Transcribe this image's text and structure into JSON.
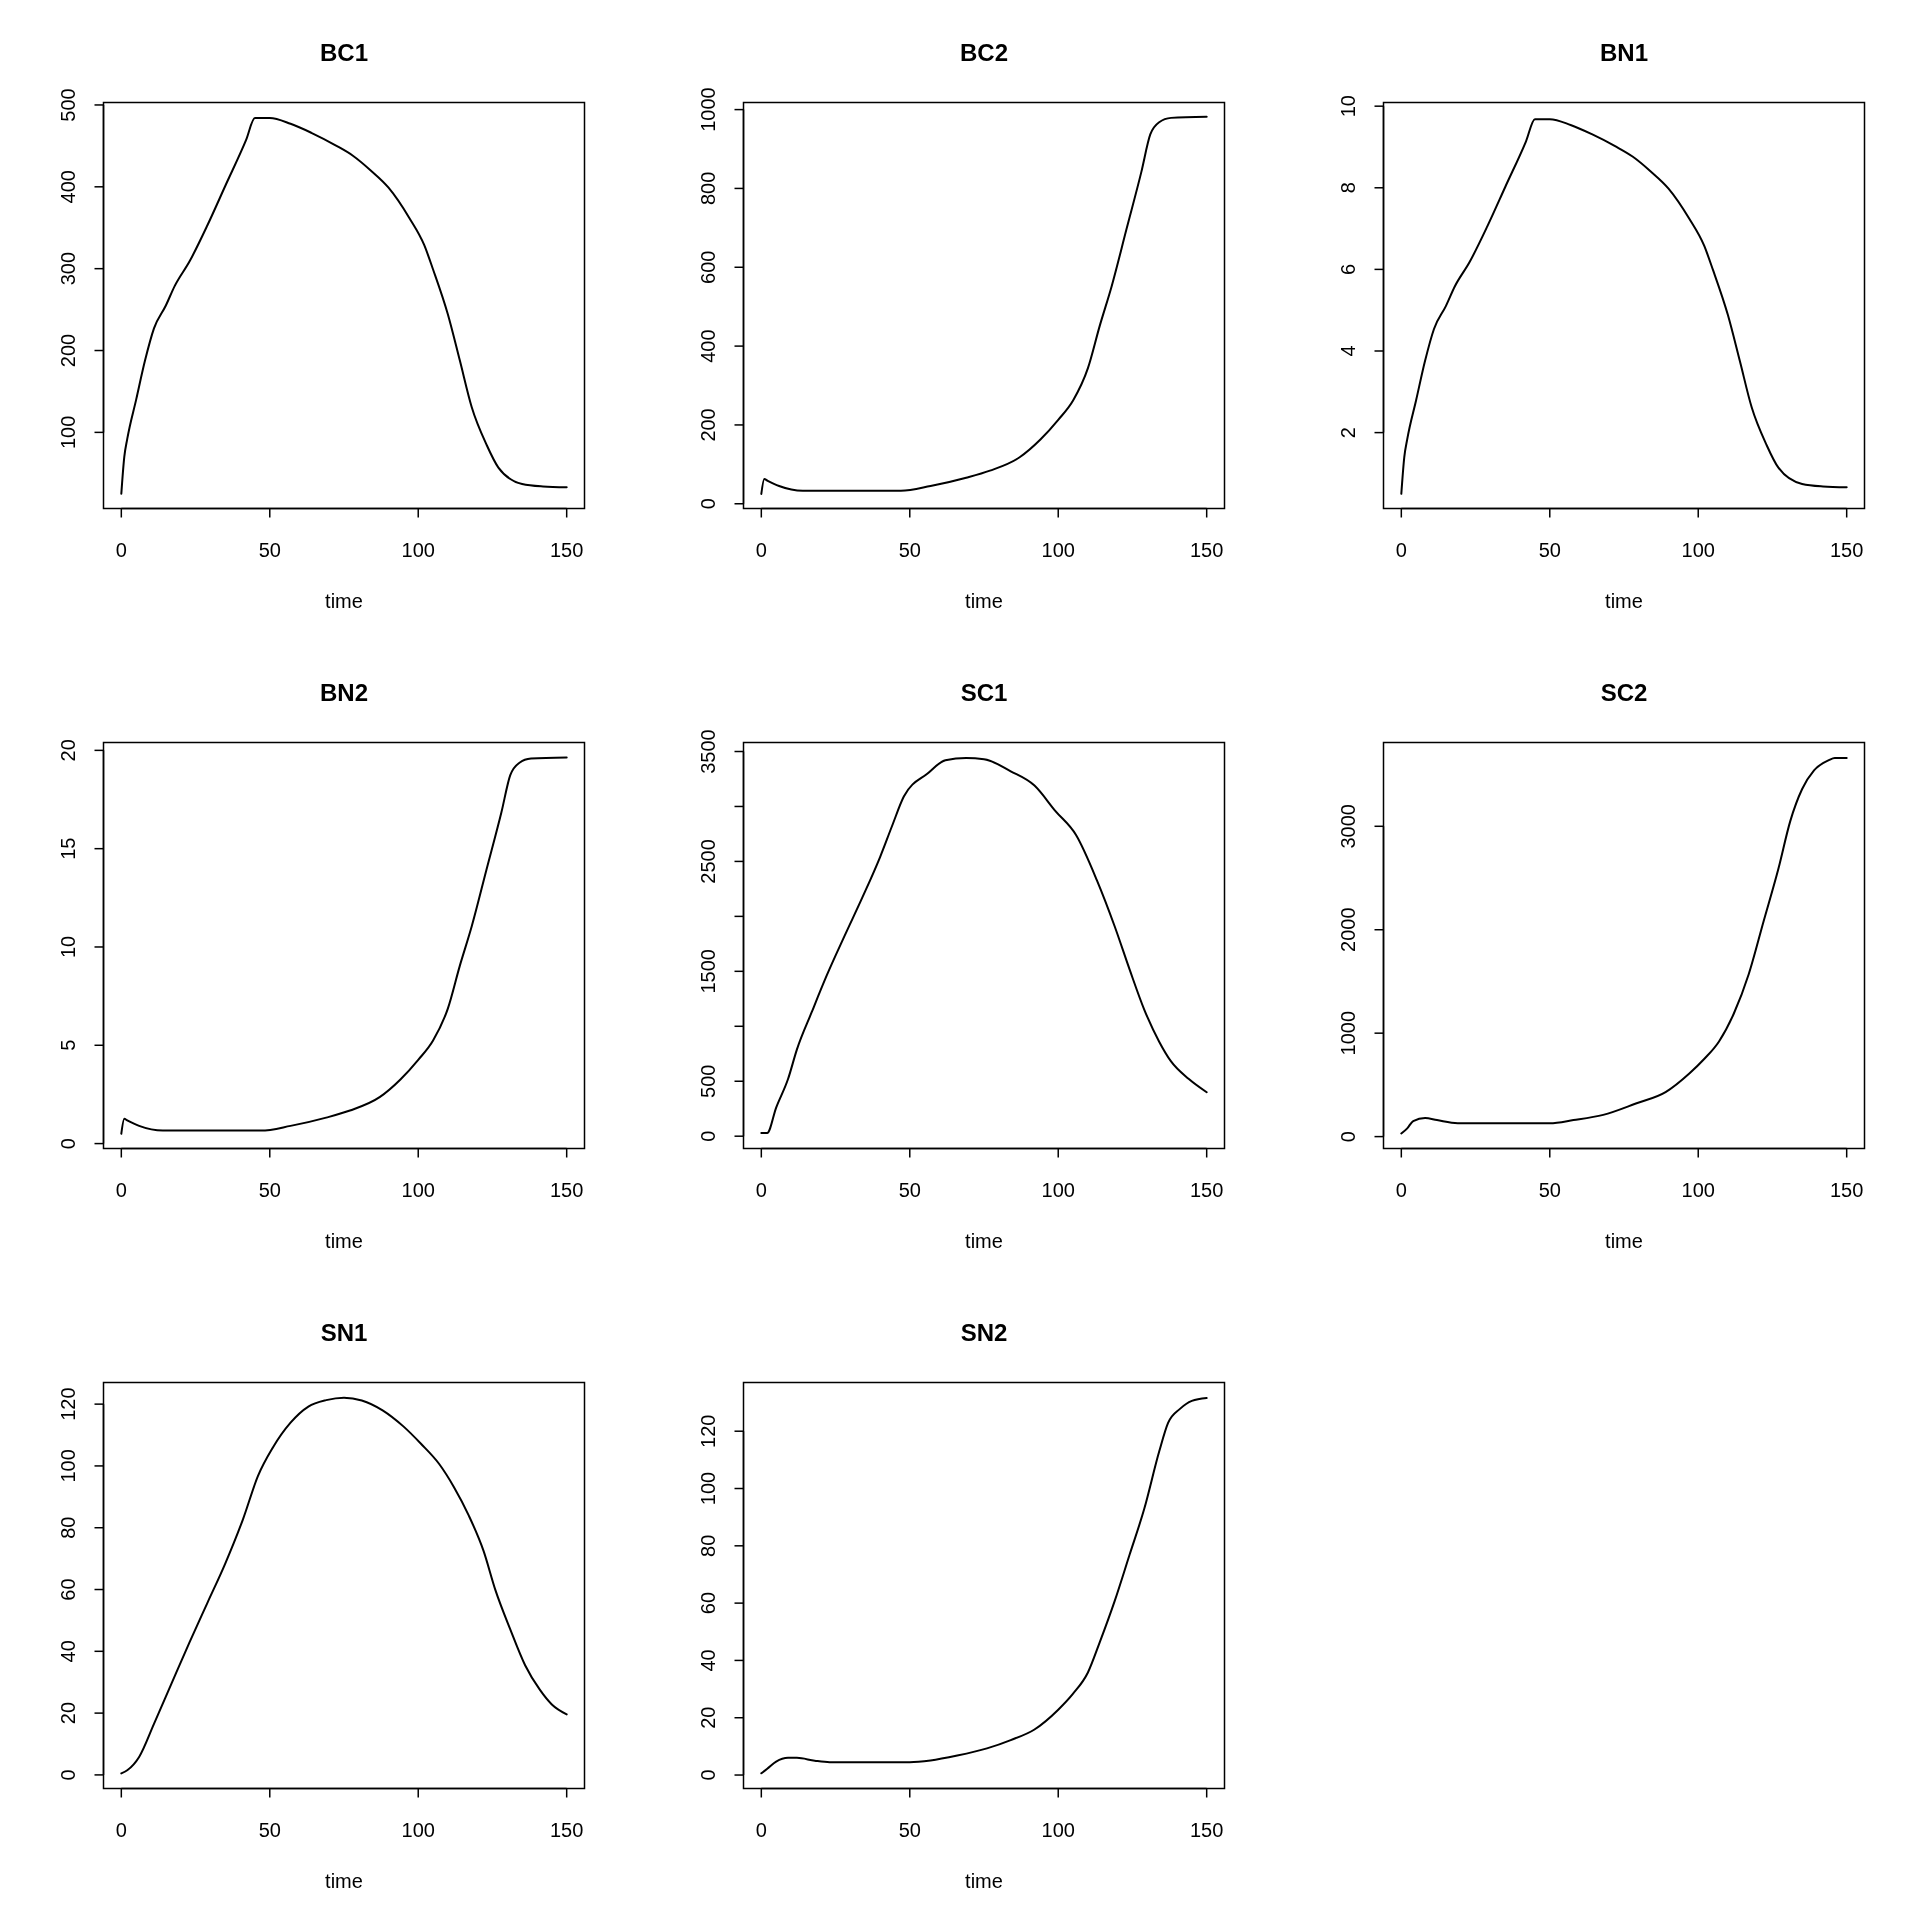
{
  "chart_data": [
    {
      "type": "line",
      "title": "BC1",
      "xlabel": "time",
      "color": "#000000",
      "xlim": [
        -6,
        156
      ],
      "xticks": [
        0,
        50,
        100,
        150
      ],
      "ylim": [
        7,
        503
      ],
      "yticks": [
        100,
        200,
        300,
        400,
        500
      ],
      "x": [
        0,
        1,
        2,
        5,
        8,
        11,
        15,
        18,
        23,
        29,
        35,
        42,
        45,
        50,
        57,
        64,
        72,
        78,
        84,
        90,
        97,
        102,
        105,
        110,
        114,
        118,
        123,
        127,
        135,
        142,
        150
      ],
      "values": [
        25,
        70,
        92,
        140,
        188,
        227,
        255,
        279,
        309,
        353,
        401,
        457,
        484,
        484,
        477,
        466,
        451,
        438,
        420,
        399,
        362,
        329,
        299,
        244,
        188,
        131,
        85,
        57,
        37,
        34,
        33
      ]
    },
    {
      "type": "line",
      "title": "BC2",
      "xlabel": "time",
      "color": "#000000",
      "xlim": [
        -6,
        156
      ],
      "xticks": [
        0,
        50,
        100,
        150
      ],
      "ylim": [
        -12,
        1018
      ],
      "yticks": [
        0,
        200,
        400,
        600,
        800,
        1000
      ],
      "x": [
        0,
        1,
        2,
        6,
        14,
        27,
        47,
        57,
        69,
        77,
        87,
        94,
        100,
        105,
        110,
        114,
        118,
        123,
        128,
        131,
        134,
        138,
        150
      ],
      "values": [
        25,
        63,
        59,
        45,
        33,
        33,
        33,
        45,
        66,
        84,
        118,
        163,
        213,
        262,
        344,
        452,
        552,
        697,
        842,
        937,
        968,
        979,
        982
      ]
    },
    {
      "type": "line",
      "title": "BN1",
      "xlabel": "time",
      "color": "#000000",
      "xlim": [
        -6,
        156
      ],
      "xticks": [
        0,
        50,
        100,
        150
      ],
      "ylim": [
        0.14,
        10.09
      ],
      "yticks": [
        2,
        4,
        6,
        8,
        10
      ],
      "x": [
        0,
        1,
        2,
        5,
        8,
        11,
        15,
        18,
        23,
        29,
        35,
        42,
        45,
        50,
        57,
        64,
        72,
        78,
        84,
        90,
        97,
        102,
        105,
        110,
        114,
        118,
        123,
        127,
        135,
        142,
        150
      ],
      "values": [
        0.5,
        1.4,
        1.84,
        2.8,
        3.76,
        4.54,
        5.1,
        5.58,
        6.18,
        7.06,
        8.02,
        9.14,
        9.68,
        9.68,
        9.54,
        9.32,
        9.02,
        8.76,
        8.4,
        7.98,
        7.24,
        6.58,
        5.98,
        4.88,
        3.76,
        2.62,
        1.7,
        1.14,
        0.74,
        0.68,
        0.66
      ]
    },
    {
      "type": "line",
      "title": "BN2",
      "xlabel": "time",
      "color": "#000000",
      "xlim": [
        -6,
        156
      ],
      "xticks": [
        0,
        50,
        100,
        150
      ],
      "ylim": [
        -0.25,
        20.4
      ],
      "yticks": [
        0,
        5,
        10,
        15,
        20
      ],
      "x": [
        0,
        1,
        2,
        6,
        14,
        27,
        47,
        57,
        69,
        77,
        87,
        94,
        100,
        105,
        110,
        114,
        118,
        123,
        128,
        131,
        134,
        138,
        150
      ],
      "values": [
        0.5,
        1.26,
        1.18,
        0.9,
        0.66,
        0.66,
        0.66,
        0.9,
        1.32,
        1.68,
        2.36,
        3.26,
        4.26,
        5.24,
        6.88,
        9.04,
        11.04,
        13.94,
        16.84,
        18.74,
        19.36,
        19.58,
        19.64
      ]
    },
    {
      "type": "line",
      "title": "SC1",
      "xlabel": "time",
      "color": "#000000",
      "xlim": [
        -6,
        156
      ],
      "xticks": [
        0,
        50,
        100,
        150
      ],
      "ylim": [
        -112,
        3582
      ],
      "yticks": [
        0,
        500,
        {
          "value": 1000,
          "label": null
        },
        1500,
        {
          "value": 2000,
          "label": null
        },
        2500,
        {
          "value": 3000,
          "label": null
        },
        3500
      ],
      "x": [
        0,
        2,
        5,
        9,
        12,
        17,
        22,
        28,
        34,
        40,
        44,
        48,
        56,
        62,
        69,
        75,
        84,
        92,
        99,
        106,
        113,
        119,
        124,
        129,
        134,
        138,
        144,
        150
      ],
      "values": [
        30,
        30,
        260,
        520,
        790,
        1130,
        1460,
        1820,
        2170,
        2540,
        2820,
        3090,
        3300,
        3420,
        3440,
        3430,
        3320,
        3190,
        2960,
        2740,
        2330,
        1910,
        1520,
        1150,
        860,
        680,
        520,
        400
      ]
    },
    {
      "type": "line",
      "title": "SC2",
      "xlabel": "time",
      "color": "#000000",
      "xlim": [
        -6,
        156
      ],
      "xticks": [
        0,
        50,
        100,
        150
      ],
      "ylim": [
        -115,
        3810
      ],
      "yticks": [
        0,
        1000,
        2000,
        3000
      ],
      "x": [
        0,
        2,
        4,
        8,
        12,
        19,
        34,
        50,
        58,
        68,
        79,
        89,
        97,
        102,
        107,
        112,
        117,
        122,
        127,
        131,
        135,
        139,
        144,
        146,
        150
      ],
      "values": [
        30,
        80,
        150,
        180,
        160,
        130,
        130,
        130,
        160,
        210,
        320,
        430,
        610,
        750,
        920,
        1190,
        1570,
        2080,
        2590,
        3050,
        3360,
        3540,
        3640,
        3660,
        3660
      ]
    },
    {
      "type": "line",
      "title": "SN1",
      "xlabel": "time",
      "color": "#000000",
      "xlim": [
        -6,
        156
      ],
      "xticks": [
        0,
        50,
        100,
        150
      ],
      "ylim": [
        -4.4,
        127
      ],
      "yticks": [
        0,
        20,
        40,
        60,
        80,
        100,
        120
      ],
      "x": [
        0,
        2,
        6,
        11,
        17,
        23,
        29,
        35,
        41,
        46,
        51,
        57,
        63,
        69,
        75,
        81,
        88,
        95,
        101,
        107,
        112,
        117,
        122,
        126,
        131,
        136,
        141,
        145,
        150
      ],
      "values": [
        0.5,
        1.5,
        5.8,
        16.5,
        29.8,
        43,
        55.7,
        68.4,
        82.8,
        96.7,
        105.9,
        114,
        119.2,
        121.3,
        122.1,
        121.2,
        118,
        112.8,
        107.1,
        100.7,
        93.2,
        84,
        72.5,
        59.8,
        47.1,
        35.5,
        27.5,
        22.8,
        19.6
      ]
    },
    {
      "type": "line",
      "title": "SN2",
      "xlabel": "time",
      "color": "#000000",
      "xlim": [
        -6,
        156
      ],
      "xticks": [
        0,
        50,
        100,
        150
      ],
      "ylim": [
        -4.7,
        137
      ],
      "yticks": [
        0,
        20,
        40,
        60,
        80,
        100,
        120
      ],
      "x": [
        0,
        2,
        5,
        9,
        12,
        18,
        23,
        39,
        50,
        57,
        66,
        76,
        84,
        92,
        100,
        105,
        110,
        114,
        119,
        124,
        129,
        134,
        137,
        141,
        145,
        150
      ],
      "values": [
        0.6,
        2.2,
        4.7,
        6,
        6,
        5,
        4.5,
        4.5,
        4.5,
        5.1,
        6.8,
        9.3,
        12.2,
        15.9,
        22.8,
        28.4,
        35.8,
        46.4,
        60.7,
        76.8,
        93,
        112.9,
        122.9,
        127.8,
        130.6,
        131.6
      ]
    }
  ]
}
